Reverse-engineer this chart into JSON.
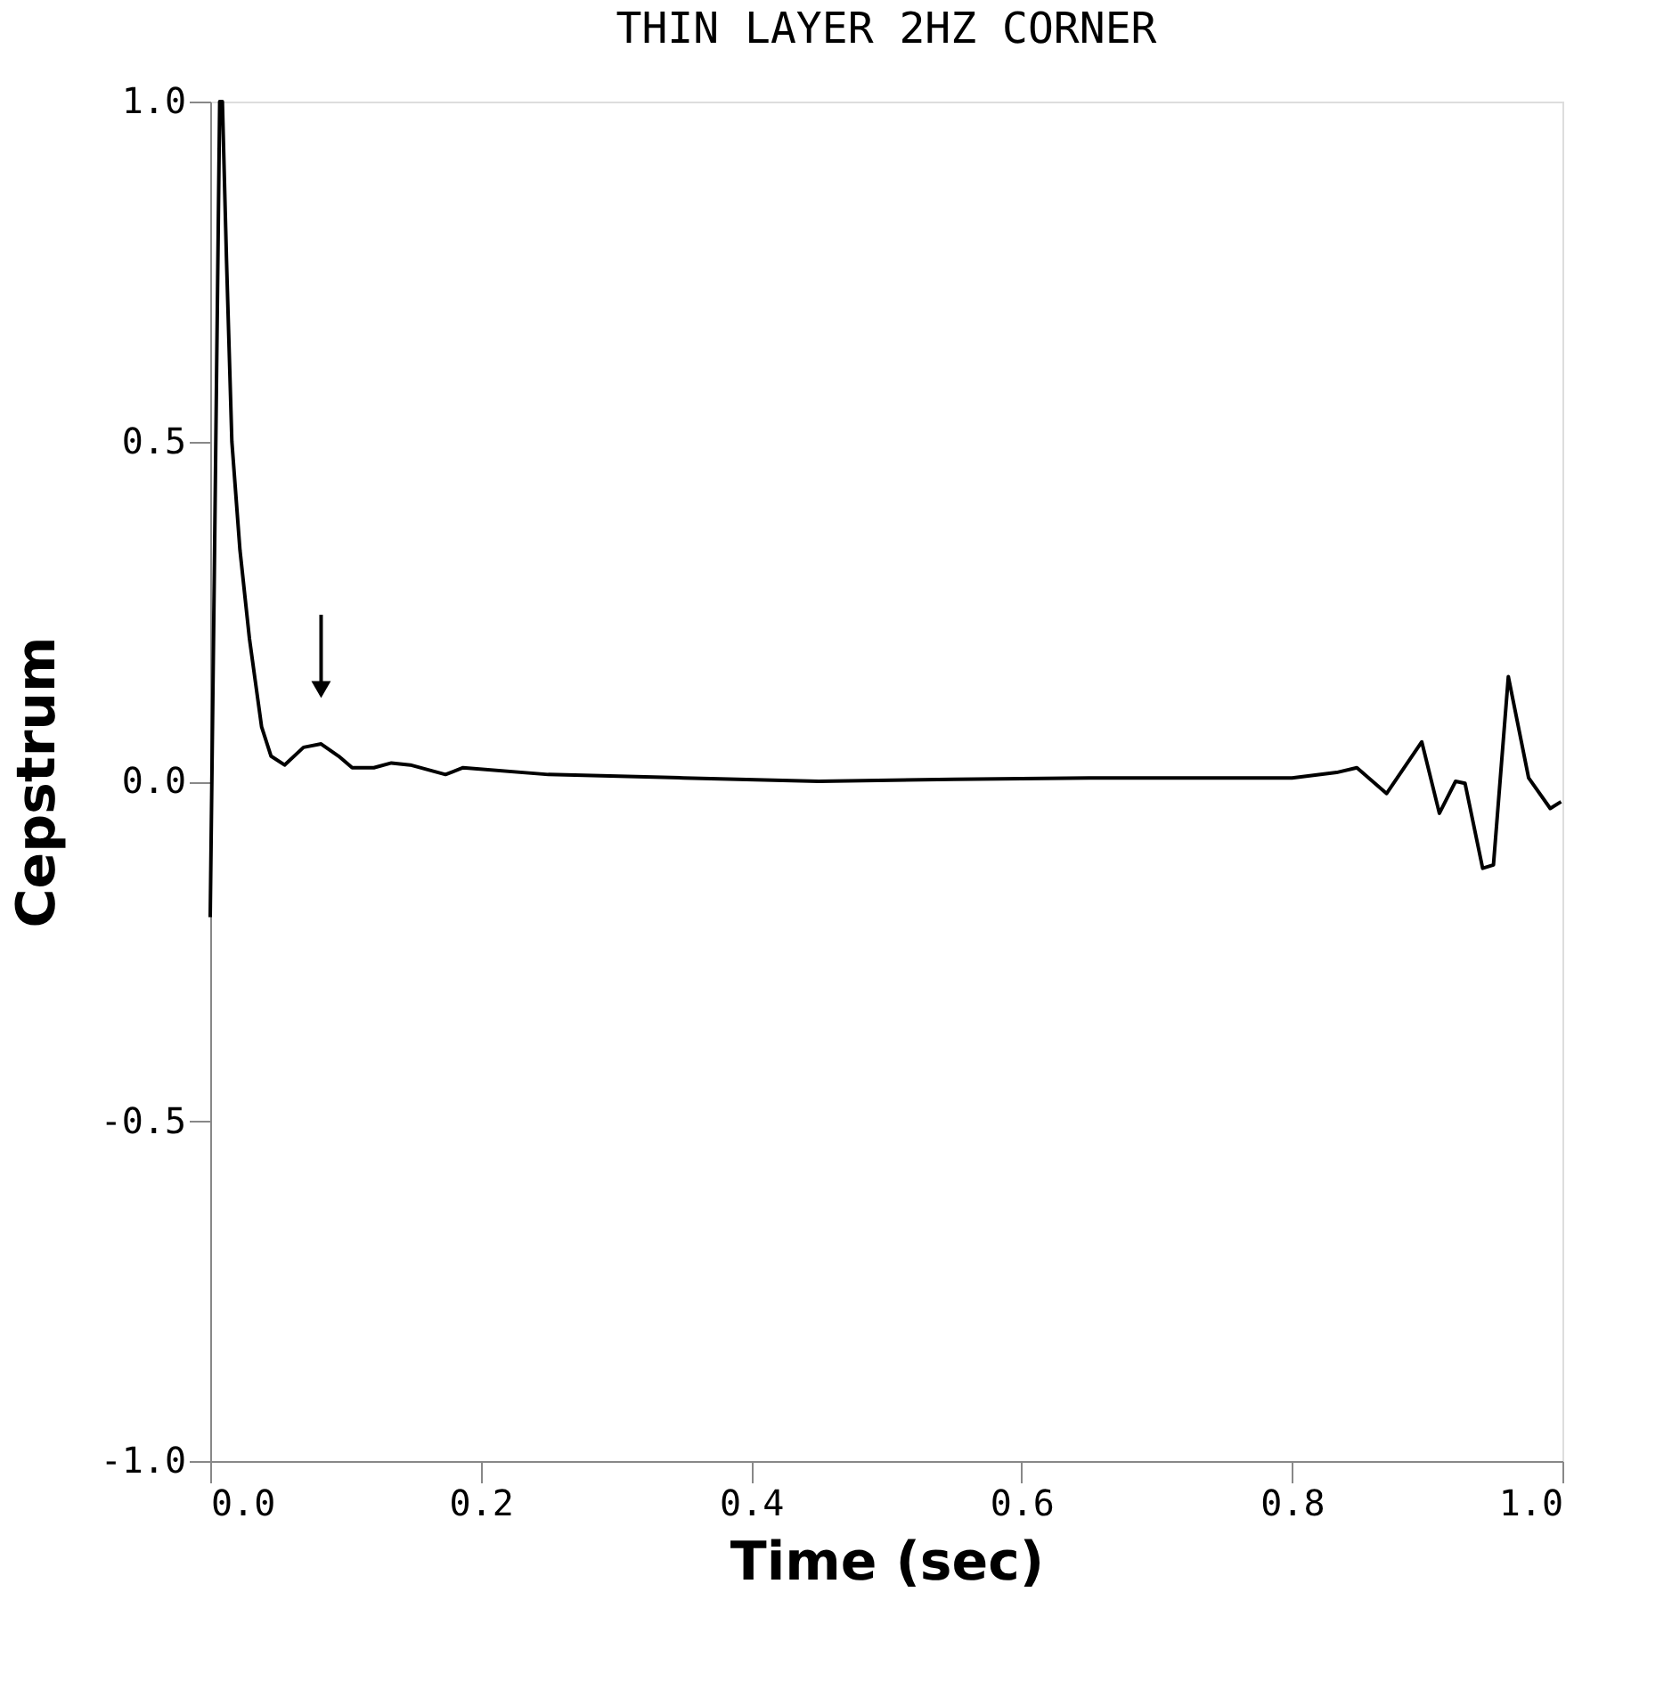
{
  "chart_data": {
    "type": "line",
    "title": "THIN LAYER 2HZ CORNER",
    "xlabel": "Time (sec)",
    "ylabel": "Cepstrum",
    "x": [
      0.0,
      0.003,
      0.007,
      0.009,
      0.012,
      0.016,
      0.022,
      0.029,
      0.038,
      0.045,
      0.055,
      0.069,
      0.082,
      0.095,
      0.105,
      0.121,
      0.134,
      0.148,
      0.174,
      0.187,
      0.25,
      0.35,
      0.45,
      0.55,
      0.65,
      0.75,
      0.8,
      0.833,
      0.848,
      0.87,
      0.896,
      0.909,
      0.921,
      0.928,
      0.941,
      0.949,
      0.96,
      0.975,
      0.991,
      0.999
    ],
    "values": [
      -0.2,
      0.3,
      1.0,
      1.0,
      0.77,
      0.5,
      0.34,
      0.21,
      0.08,
      0.037,
      0.024,
      0.05,
      0.055,
      0.037,
      0.02,
      0.02,
      0.027,
      0.024,
      0.01,
      0.02,
      0.01,
      0.005,
      0.0,
      0.003,
      0.005,
      0.005,
      0.005,
      0.013,
      0.02,
      -0.018,
      0.058,
      -0.047,
      0.0,
      -0.003,
      -0.128,
      -0.123,
      0.154,
      0.005,
      -0.04,
      -0.03
    ],
    "color": "#000000",
    "xlim": [
      0.0,
      1.0
    ],
    "ylim": [
      -1.0,
      1.0
    ],
    "xticks": [
      {
        "value": 0.0,
        "label": "0.0"
      },
      0.2,
      0.4,
      0.6,
      0.8,
      {
        "value": 1.0,
        "label": "1.0"
      }
    ],
    "yticks": [
      {
        "value": -1.0,
        "label": "-1.0"
      },
      -0.5,
      {
        "value": 0.0,
        "label": "0.0"
      },
      0.5,
      {
        "value": 1.0,
        "label": "1.0"
      }
    ],
    "grid": false,
    "marker": "none",
    "line_style": "solid"
  }
}
